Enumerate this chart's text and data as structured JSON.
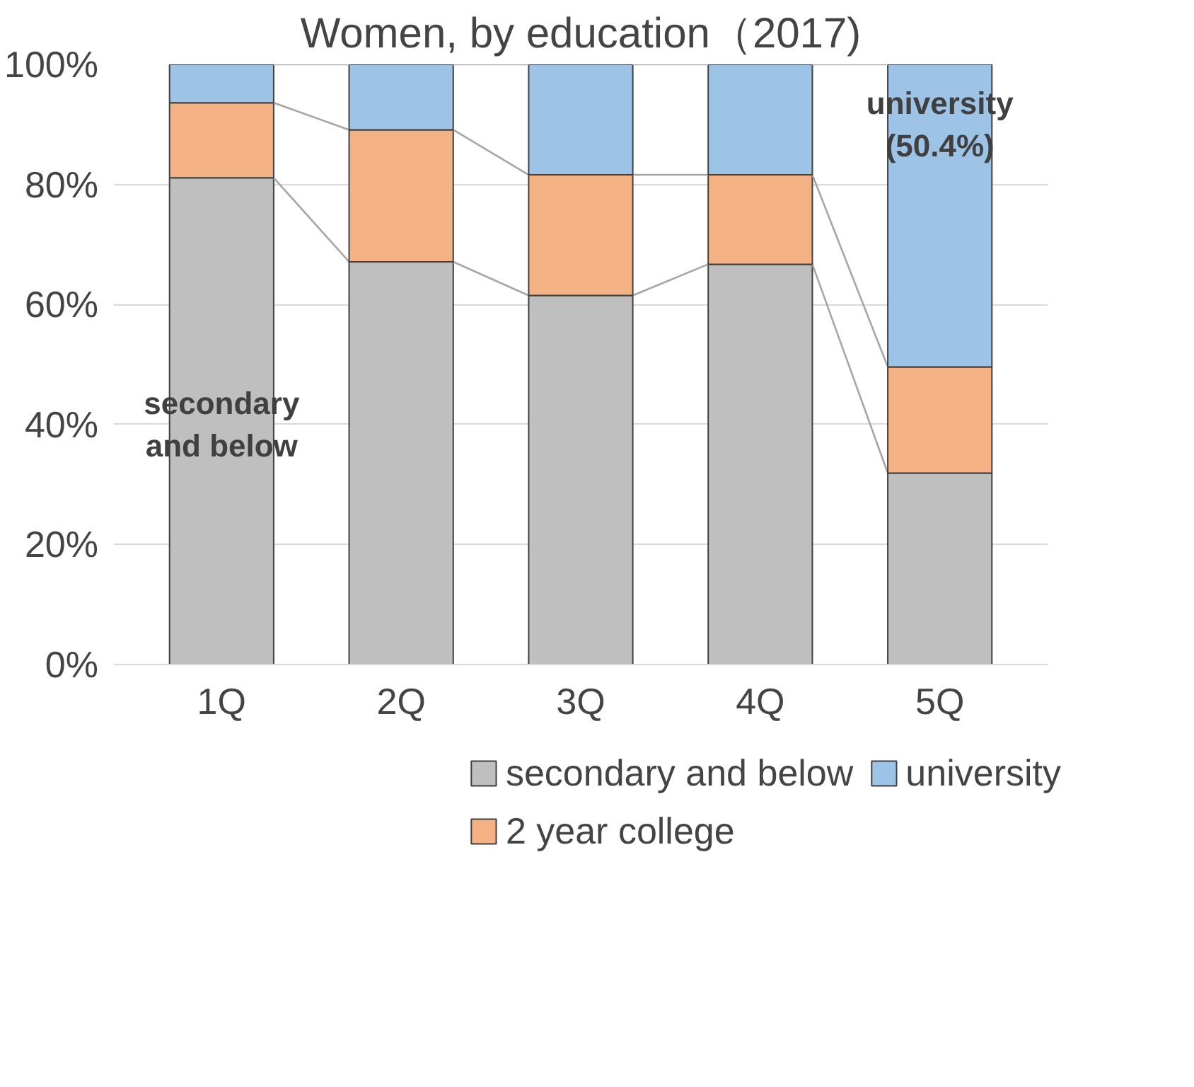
{
  "chart_data": {
    "type": "bar",
    "stacked": true,
    "title": "Women, by education（2017)",
    "categories": [
      "1Q",
      "2Q",
      "3Q",
      "4Q",
      "5Q"
    ],
    "series": [
      {
        "name": "secondary and below",
        "color": "#bfbfbf",
        "values": [
          81.1,
          67.1,
          61.5,
          66.7,
          31.9
        ]
      },
      {
        "name": "2 year college",
        "color": "#f4b183",
        "values": [
          12.5,
          22.0,
          20.1,
          14.9,
          17.7
        ]
      },
      {
        "name": "university",
        "color": "#9dc3e6",
        "values": [
          6.4,
          10.9,
          18.4,
          18.4,
          50.4
        ]
      }
    ],
    "ylim": [
      0,
      100
    ],
    "yticks": [
      {
        "value": 0,
        "label": "0%"
      },
      {
        "value": 20,
        "label": "20%"
      },
      {
        "value": 40,
        "label": "40%"
      },
      {
        "value": 60,
        "label": "60%"
      },
      {
        "value": 80,
        "label": "80%"
      },
      {
        "value": 100,
        "label": "100%"
      }
    ],
    "grid": "y",
    "legend": "bottom",
    "annotations": [
      "secondary\nand below",
      "university\n(50.4%)"
    ]
  }
}
